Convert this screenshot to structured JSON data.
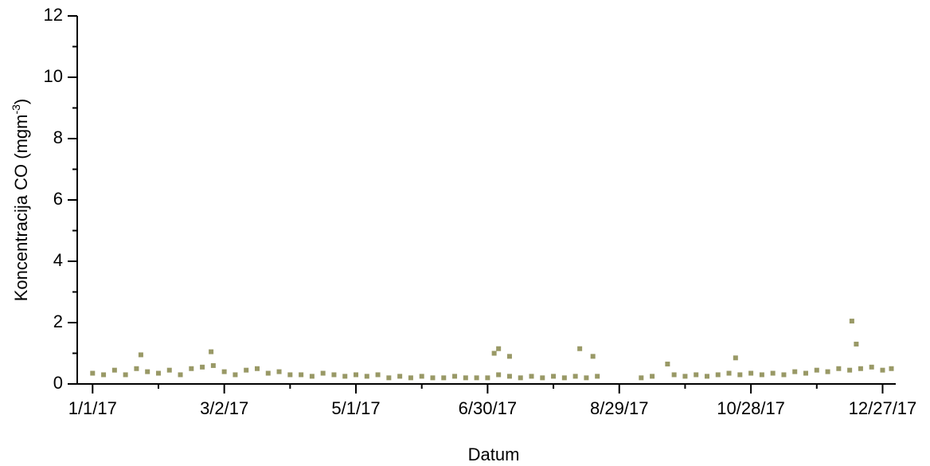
{
  "chart_data": {
    "type": "scatter",
    "xlabel": "Datum",
    "ylabel": "Koncentracija CO (mgm",
    "ylabel_sup": "-3",
    "ylabel_end": ")",
    "color": "#999966",
    "xlim": [
      "12/25/16",
      "1/2/18"
    ],
    "xticks": [
      "1/1/17",
      "3/2/17",
      "5/1/17",
      "6/30/17",
      "8/29/17",
      "10/28/17",
      "12/27/17"
    ],
    "xticks_minor": [
      "1/31/17",
      "4/1/17",
      "5/31/17",
      "7/30/17",
      "9/28/17",
      "11/27/17"
    ],
    "ylim": [
      0,
      12
    ],
    "yticks": [
      0,
      2,
      4,
      6,
      8,
      10,
      12
    ],
    "yticks_minor": [
      1,
      3,
      5,
      7,
      9,
      11
    ],
    "x": [
      "1/1/17",
      "1/6/17",
      "1/11/17",
      "1/16/17",
      "1/21/17",
      "1/26/17",
      "1/31/17",
      "2/5/17",
      "2/10/17",
      "2/15/17",
      "2/20/17",
      "2/25/17",
      "3/2/17",
      "3/7/17",
      "3/12/17",
      "3/17/17",
      "3/22/17",
      "3/27/17",
      "4/1/17",
      "4/6/17",
      "4/11/17",
      "4/16/17",
      "4/21/17",
      "4/26/17",
      "5/1/17",
      "5/6/17",
      "5/11/17",
      "5/16/17",
      "5/21/17",
      "5/26/17",
      "5/31/17",
      "6/5/17",
      "6/10/17",
      "6/15/17",
      "6/20/17",
      "6/25/17",
      "6/30/17",
      "7/5/17",
      "7/10/17",
      "7/15/17",
      "7/20/17",
      "7/25/17",
      "7/30/17",
      "8/4/17",
      "8/9/17",
      "8/14/17",
      "8/19/17",
      "9/8/17",
      "9/13/17",
      "9/23/17",
      "9/28/17",
      "10/3/17",
      "10/8/17",
      "10/13/17",
      "10/18/17",
      "10/23/17",
      "10/28/17",
      "11/2/17",
      "11/7/17",
      "11/12/17",
      "11/17/17",
      "11/22/17",
      "11/27/17",
      "12/2/17",
      "12/7/17",
      "12/12/17",
      "12/17/17",
      "12/22/17",
      "12/27/17",
      "12/31/17",
      "1/23/17",
      "2/24/17",
      "7/3/17",
      "7/5/17",
      "7/10/17",
      "8/11/17",
      "8/17/17",
      "9/20/17",
      "10/21/17",
      "12/13/17",
      "12/15/17"
    ],
    "values": [
      0.35,
      0.3,
      0.45,
      0.3,
      0.5,
      0.4,
      0.35,
      0.45,
      0.3,
      0.5,
      0.55,
      0.6,
      0.4,
      0.3,
      0.45,
      0.5,
      0.35,
      0.4,
      0.3,
      0.3,
      0.25,
      0.35,
      0.3,
      0.25,
      0.3,
      0.25,
      0.3,
      0.2,
      0.25,
      0.2,
      0.25,
      0.2,
      0.2,
      0.25,
      0.2,
      0.2,
      0.2,
      0.3,
      0.25,
      0.2,
      0.25,
      0.2,
      0.25,
      0.2,
      0.25,
      0.2,
      0.25,
      0.2,
      0.25,
      0.3,
      0.25,
      0.3,
      0.25,
      0.3,
      0.35,
      0.3,
      0.35,
      0.3,
      0.35,
      0.3,
      0.4,
      0.35,
      0.45,
      0.4,
      0.5,
      0.45,
      0.5,
      0.55,
      0.45,
      0.5,
      0.95,
      1.05,
      1.0,
      1.15,
      0.9,
      1.15,
      0.9,
      0.65,
      0.85,
      2.05,
      1.3
    ]
  }
}
